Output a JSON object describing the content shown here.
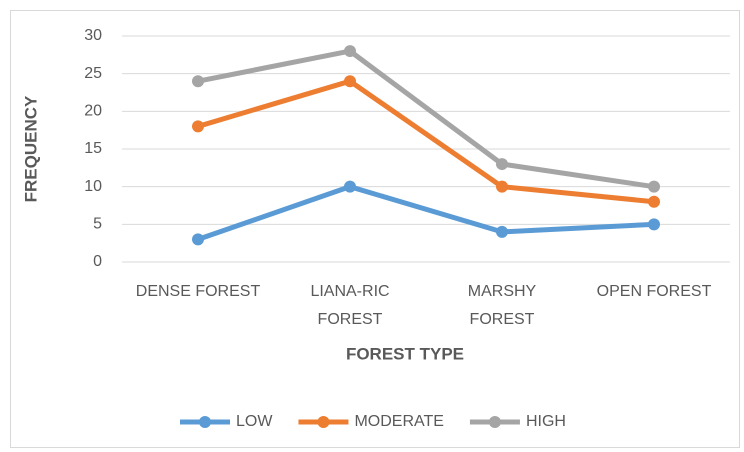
{
  "chart_data": {
    "type": "line",
    "x_label": "FOREST TYPE",
    "y_label": "FREQUENCY",
    "categories": [
      "DENSE FOREST",
      "LIANA-RIC FOREST",
      "MARSHY FOREST",
      "OPEN FOREST"
    ],
    "series": [
      {
        "name": "LOW",
        "color": "#5b9bd5",
        "values": [
          3,
          10,
          4,
          5
        ]
      },
      {
        "name": "MODERATE",
        "color": "#ed7d31",
        "values": [
          18,
          24,
          10,
          8
        ]
      },
      {
        "name": "HIGH",
        "color": "#a5a5a5",
        "values": [
          24,
          28,
          13,
          10
        ]
      }
    ],
    "ylim": [
      0,
      30
    ],
    "yticks": [
      0,
      5,
      10,
      15,
      20,
      25,
      30
    ],
    "grid": true,
    "legend": "bottom"
  }
}
